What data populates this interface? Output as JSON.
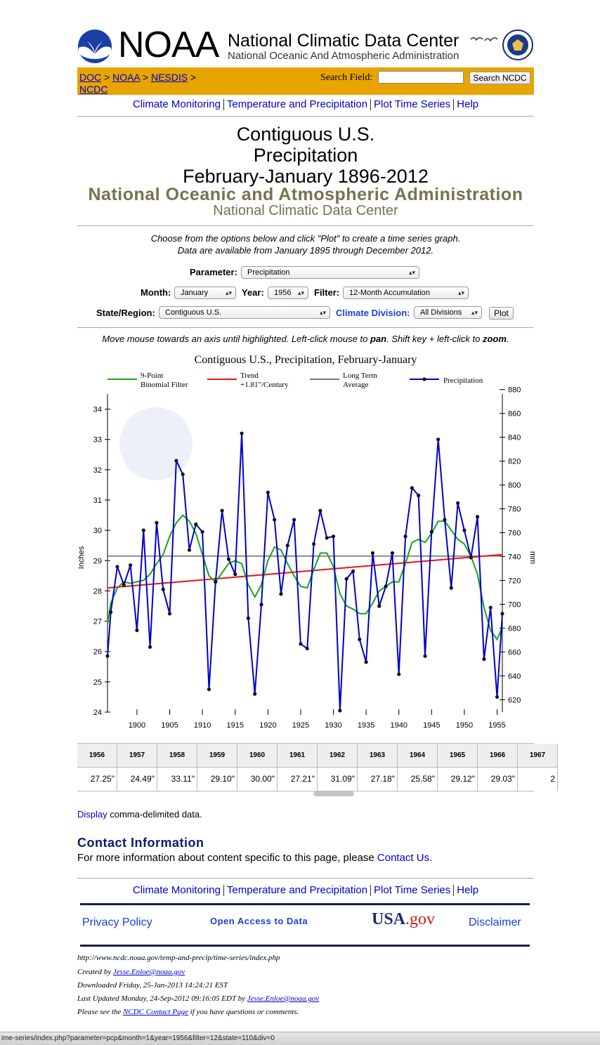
{
  "header": {
    "logo_text": "NOAA",
    "center_name": "National Climatic Data Center",
    "agency_name": "National Oceanic And Atmospheric Administration"
  },
  "breadcrumb": {
    "doc": "DOC",
    "noaa": "NOAA",
    "nesdis": "NESDIS",
    "ncdc": "NCDC",
    "sep": ">"
  },
  "search": {
    "label": "Search Field:",
    "value": "",
    "button": "Search NCDC"
  },
  "nav": {
    "items": [
      "Climate Monitoring",
      "Temperature and Precipitation",
      "Plot Time Series",
      "Help"
    ]
  },
  "title": {
    "line1": "Contiguous U.S.",
    "line2": "Precipitation",
    "line3": "February-January 1896-2012",
    "agency": "National Oceanic and Atmospheric Administration",
    "center": "National Climatic Data Center"
  },
  "instructions": {
    "line1": "Choose from the options below and click \"Plot\" to create a time series graph.",
    "line2": "Data are available from January 1895 through December 2012."
  },
  "form": {
    "parameter_label": "Parameter:",
    "parameter_value": "Precipitation",
    "month_label": "Month:",
    "month_value": "January",
    "year_label": "Year:",
    "year_value": "1956",
    "filter_label": "Filter:",
    "filter_value": "12-Month Accumulation",
    "state_label": "State/Region:",
    "state_value": "Contiguous U.S.",
    "division_label": "Climate Division:",
    "division_value": "All Divisions",
    "plot_button": "Plot"
  },
  "hint": {
    "pre": "Move mouse towards an axis until highlighted. Left-click mouse to ",
    "pan": "pan",
    "mid": ". Shift key + left-click to ",
    "zoom": "zoom",
    "post": "."
  },
  "chart_data": {
    "type": "line",
    "title": "Contiguous U.S., Precipitation, February-January",
    "ylabel": "Inches",
    "y2label": "mm",
    "xlim": [
      1895.5,
      1955.8
    ],
    "ylim": [
      24,
      34.5
    ],
    "y2lim": [
      609.6,
      876.3
    ],
    "x_ticks": [
      1900,
      1905,
      1910,
      1915,
      1920,
      1925,
      1930,
      1935,
      1940,
      1945,
      1950,
      1955
    ],
    "y_ticks": [
      24,
      25,
      26,
      27,
      28,
      29,
      30,
      31,
      32,
      33,
      34
    ],
    "y2_ticks": [
      620,
      640,
      660,
      680,
      700,
      720,
      740,
      760,
      780,
      800,
      820,
      840,
      860,
      880
    ],
    "legend": [
      {
        "name": "9-Point Binomial Filter",
        "line1": "9-Point",
        "line2": "Binomial Filter",
        "color": "#19a319"
      },
      {
        "name": "Trend +1.81\"/Century",
        "line1": "Trend",
        "line2": "+1.81\"/Century",
        "color": "#ee1111"
      },
      {
        "name": "Long Term Average",
        "line1": "Long Term",
        "line2": "Average",
        "color": "#777777"
      },
      {
        "name": "Precipitation",
        "line1": "Precipitation",
        "line2": "",
        "color": "#0000cc"
      }
    ],
    "long_term_average": 29.15,
    "trend": {
      "start": [
        1895.5,
        28.1
      ],
      "end": [
        1955.8,
        29.2
      ]
    },
    "precipitation": {
      "x": [
        1895.5,
        1896,
        1897,
        1898,
        1899,
        1900,
        1901,
        1902,
        1903,
        1904,
        1905,
        1906,
        1907,
        1908,
        1909,
        1910,
        1911,
        1912,
        1913,
        1914,
        1915,
        1916,
        1917,
        1918,
        1919,
        1920,
        1921,
        1922,
        1923,
        1924,
        1925,
        1926,
        1927,
        1928,
        1929,
        1930,
        1931,
        1932,
        1933,
        1934,
        1935,
        1936,
        1937,
        1938,
        1939,
        1940,
        1941,
        1942,
        1943,
        1944,
        1945,
        1946,
        1947,
        1948,
        1949,
        1950,
        1951,
        1952,
        1953,
        1954,
        1955,
        1955.8
      ],
      "y": [
        25.85,
        27.3,
        28.8,
        28.2,
        28.85,
        26.7,
        30.0,
        26.15,
        30.25,
        28.05,
        27.25,
        32.3,
        31.85,
        29.35,
        30.2,
        29.95,
        24.75,
        28.3,
        30.65,
        29.05,
        28.55,
        33.2,
        27.1,
        24.6,
        27.55,
        31.25,
        30.35,
        27.9,
        29.5,
        30.35,
        26.25,
        26.1,
        29.55,
        30.65,
        29.75,
        29.8,
        24.05,
        28.4,
        28.65,
        26.4,
        25.65,
        29.25,
        27.5,
        28.15,
        29.25,
        25.25,
        29.8,
        31.4,
        31.15,
        25.85,
        29.95,
        33.0,
        30.35,
        28.1,
        30.9,
        30.0,
        29.1,
        30.45,
        25.75,
        27.45,
        24.5,
        27.25
      ]
    },
    "filter": {
      "x": [
        1895.5,
        1896,
        1897,
        1898,
        1899,
        1900,
        1901,
        1902,
        1903,
        1904,
        1905,
        1906,
        1907,
        1908,
        1909,
        1910,
        1911,
        1912,
        1913,
        1914,
        1915,
        1916,
        1917,
        1918,
        1919,
        1920,
        1921,
        1922,
        1923,
        1924,
        1925,
        1926,
        1927,
        1928,
        1929,
        1930,
        1931,
        1932,
        1933,
        1934,
        1935,
        1936,
        1937,
        1938,
        1939,
        1940,
        1941,
        1942,
        1943,
        1944,
        1945,
        1946,
        1947,
        1948,
        1949,
        1950,
        1951,
        1952,
        1953,
        1954,
        1955,
        1955.8
      ],
      "y": [
        26.9,
        27.6,
        28.1,
        28.3,
        28.25,
        28.3,
        28.35,
        28.55,
        28.9,
        29.2,
        29.8,
        30.25,
        30.5,
        30.3,
        29.9,
        29.2,
        28.5,
        28.3,
        28.6,
        28.9,
        29.0,
        28.9,
        28.2,
        27.8,
        28.2,
        29.0,
        29.45,
        29.35,
        28.9,
        28.5,
        28.15,
        28.1,
        28.7,
        29.25,
        29.25,
        28.8,
        27.9,
        27.5,
        27.4,
        27.25,
        27.25,
        27.6,
        28.0,
        28.15,
        28.3,
        28.3,
        28.9,
        29.6,
        29.7,
        29.6,
        29.9,
        30.3,
        30.3,
        30.0,
        29.7,
        29.55,
        29.15,
        28.55,
        27.45,
        26.7,
        26.4,
        26.8
      ]
    }
  },
  "table": {
    "years": [
      "1956",
      "1957",
      "1958",
      "1959",
      "1960",
      "1961",
      "1962",
      "1963",
      "1964",
      "1965",
      "1966",
      "1967"
    ],
    "values": [
      "27.25\"",
      "24.49\"",
      "33.11\"",
      "29.10\"",
      "30.00\"",
      "27.21\"",
      "31.09\"",
      "27.18\"",
      "25.58\"",
      "29.12\"",
      "29.03\"",
      "2"
    ]
  },
  "display": {
    "link": "Display",
    "text": " comma-delimited data."
  },
  "contact": {
    "heading": "Contact Information",
    "text": "For more information about content specific to this page, please ",
    "link": "Contact Us",
    "end": "."
  },
  "footer_links": {
    "privacy": "Privacy Policy",
    "open_access": "Open Access to Data",
    "usa_a": "USA",
    "usa_b": ".gov",
    "disclaimer": "Disclaimer"
  },
  "footer": {
    "url": "http://www.ncdc.noaa.gov/temp-and-precip/time-series/index.php",
    "created_label": "Created by ",
    "created_email": "Jesse.Enloe@noaa.gov",
    "downloaded": "Downloaded Friday, 25-Jan-2013 14:24:21 EST",
    "updated_label": "Last Updated Monday, 24-Sep-2012 09:16:05 EDT by ",
    "updated_email": "Jesse.Enloe@noaa.gov",
    "please_pre": "Please see the ",
    "please_link": "NCDC Contact Page",
    "please_post": " if you have questions or comments."
  },
  "status_bar": {
    "text": "ime-series/index.php?parameter=pcp&month=1&year=1956&filter=12&state=110&div=0"
  }
}
